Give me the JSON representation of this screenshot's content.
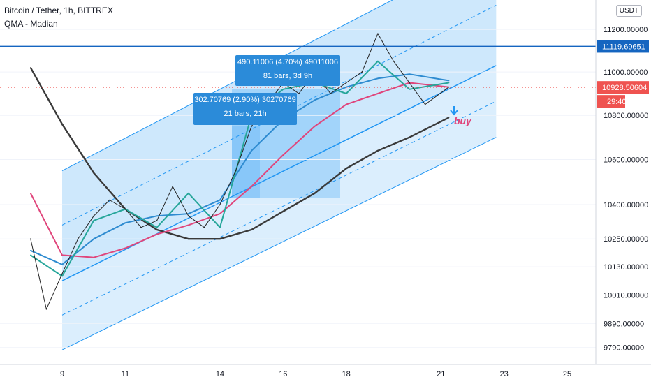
{
  "header": {
    "symbol_line": "Bitcoin / Tether, 1h, BITTREX",
    "indicator_line": "QMA - Madian"
  },
  "currency_button": "USDT",
  "price_axis": {
    "ticks": [
      "11200.00000",
      "11000.00000",
      "10800.00000",
      "10600.00000",
      "10400.00000",
      "10250.00000",
      "10130.00000",
      "10010.00000",
      "9890.00000",
      "9790.00000"
    ],
    "tick_values": [
      11200,
      11000,
      10800,
      10600,
      10400,
      10250,
      10130,
      10010,
      9890,
      9790
    ],
    "scale": "log"
  },
  "time_axis": {
    "ticks": [
      "9",
      "11",
      "14",
      "16",
      "18",
      "21",
      "23",
      "25"
    ]
  },
  "price_tags": {
    "level_line": {
      "label": "11119.69651",
      "value": 11119.69651,
      "color": "#1565c0"
    },
    "last_price": {
      "label": "10928.50604",
      "value": 10928.50604,
      "color": "#ef5350"
    },
    "countdown": {
      "label": "29:40",
      "color": "#ef5350"
    }
  },
  "measurements": [
    {
      "line1": "490.11006 (4.70%) 49011006",
      "line2": "81 bars, 3d 9h"
    },
    {
      "line1": "302.70769 (2.90%) 30270769",
      "line2": "21 bars, 21h"
    }
  ],
  "annotation": {
    "text": "buy",
    "color": "#e0457b"
  },
  "chart_data": {
    "type": "line",
    "title": "Bitcoin / Tether, 1h, BITTREX",
    "xlabel": "",
    "ylabel": "",
    "y_scale": "log",
    "ylim": [
      9720,
      11340
    ],
    "x_ticks": [
      "9",
      "11",
      "14",
      "16",
      "18",
      "21",
      "23",
      "25"
    ],
    "series": [
      {
        "name": "QMA - Madian",
        "color": "#3a3a3a",
        "x": [
          "Aug 8 00:00",
          "Aug 9 00:00",
          "Aug 10 00:00",
          "Aug 11 00:00",
          "Aug 12 00:00",
          "Aug 13 00:00",
          "Aug 14 00:00",
          "Aug 15 00:00",
          "Aug 16 00:00",
          "Aug 17 00:00",
          "Aug 18 00:00",
          "Aug 19 00:00",
          "Aug 20 00:00",
          "Aug 21 06:00"
        ],
        "values": [
          11020,
          10760,
          10540,
          10380,
          10290,
          10250,
          10250,
          10290,
          10370,
          10450,
          10560,
          10640,
          10700,
          10790
        ]
      },
      {
        "color": "#e0457b",
        "x": [
          "Aug 8 00:00",
          "Aug 9 00:00",
          "Aug 10 00:00",
          "Aug 11 00:00",
          "Aug 12 00:00",
          "Aug 13 00:00",
          "Aug 14 00:00",
          "Aug 15 00:00",
          "Aug 16 00:00",
          "Aug 17 00:00",
          "Aug 18 00:00",
          "Aug 19 00:00",
          "Aug 20 00:00",
          "Aug 21 06:00"
        ],
        "values": [
          10450,
          10180,
          10170,
          10210,
          10270,
          10310,
          10360,
          10480,
          10620,
          10750,
          10850,
          10900,
          10950,
          10930
        ]
      },
      {
        "color": "#2e8bd0",
        "x": [
          "Aug 8 00:00",
          "Aug 9 00:00",
          "Aug 10 00:00",
          "Aug 11 00:00",
          "Aug 12 00:00",
          "Aug 13 00:00",
          "Aug 14 00:00",
          "Aug 15 00:00",
          "Aug 16 00:00",
          "Aug 17 00:00",
          "Aug 18 00:00",
          "Aug 19 00:00",
          "Aug 20 00:00",
          "Aug 21 06:00"
        ],
        "values": [
          10200,
          10140,
          10250,
          10320,
          10350,
          10360,
          10420,
          10640,
          10780,
          10870,
          10930,
          10970,
          10990,
          10960
        ]
      },
      {
        "color": "#26a69a",
        "x": [
          "Aug 8 00:00",
          "Aug 9 00:00",
          "Aug 10 00:00",
          "Aug 11 00:00",
          "Aug 12 00:00",
          "Aug 13 00:00",
          "Aug 14 00:00",
          "Aug 15 00:00",
          "Aug 16 00:00",
          "Aug 17 00:00",
          "Aug 18 00:00",
          "Aug 19 00:00",
          "Aug 20 00:00",
          "Aug 21 06:00"
        ],
        "values": [
          10180,
          10090,
          10330,
          10380,
          10300,
          10450,
          10300,
          10800,
          10920,
          10950,
          10900,
          11050,
          10920,
          10950
        ]
      },
      {
        "color": "#222222",
        "x": [
          "Aug 8 00:00",
          "Aug 8 12:00",
          "Aug 9 00:00",
          "Aug 9 12:00",
          "Aug 10 00:00",
          "Aug 10 12:00",
          "Aug 11 00:00",
          "Aug 11 12:00",
          "Aug 12 00:00",
          "Aug 12 12:00",
          "Aug 13 00:00",
          "Aug 13 12:00",
          "Aug 14 00:00",
          "Aug 14 12:00",
          "Aug 15 00:00",
          "Aug 15 12:00",
          "Aug 16 00:00",
          "Aug 16 12:00",
          "Aug 17 00:00",
          "Aug 17 12:00",
          "Aug 18 00:00",
          "Aug 18 12:00",
          "Aug 19 00:00",
          "Aug 19 12:00",
          "Aug 20 00:00",
          "Aug 20 12:00",
          "Aug 21 06:00"
        ],
        "values": [
          10250,
          9950,
          10100,
          10250,
          10350,
          10420,
          10380,
          10300,
          10330,
          10480,
          10350,
          10300,
          10400,
          10550,
          10750,
          10850,
          10950,
          10900,
          11000,
          10900,
          10950,
          11000,
          11180,
          11050,
          10950,
          10850,
          10930
        ]
      }
    ],
    "regression_channel": {
      "start": "Aug 9 00:00",
      "end": "Aug 22 18:00",
      "center_start": 10070,
      "center_end": 11030,
      "upper_start": 10550,
      "upper_end": 11600,
      "lower_start": 9780,
      "lower_end": 10700
    },
    "horizontal_line": 11119.69651,
    "last_price": 10928.50604
  }
}
